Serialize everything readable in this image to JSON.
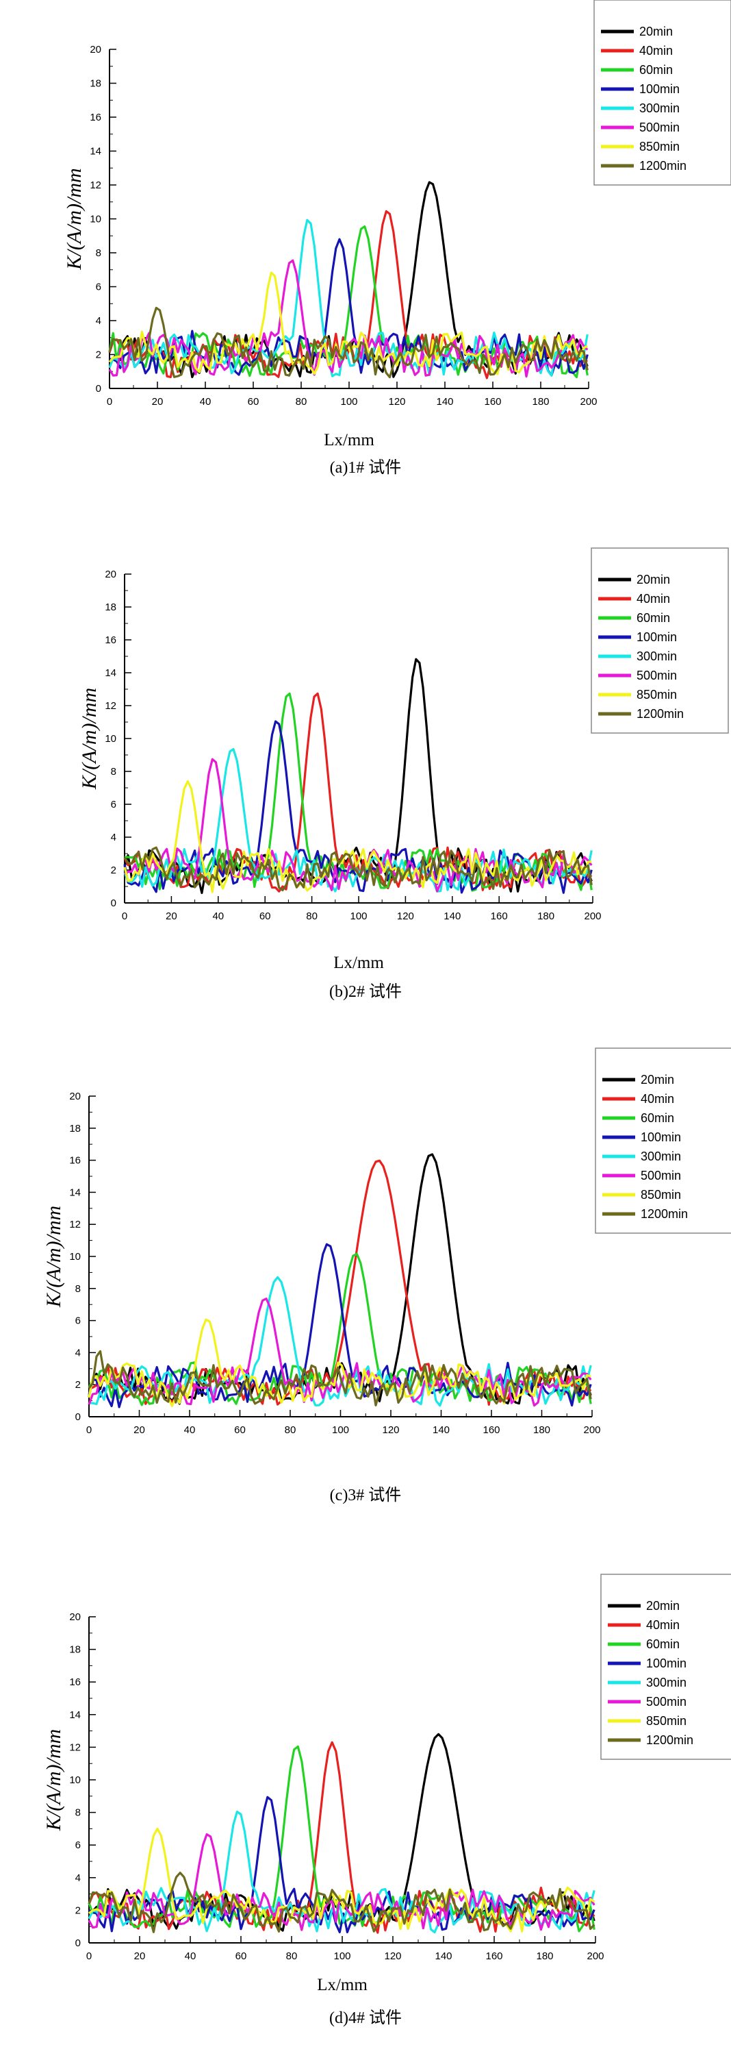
{
  "legend_labels": [
    "20min",
    "40min",
    "60min",
    "100min",
    "300min",
    "500min",
    "850min",
    "1200min"
  ],
  "series_colors": [
    "#000000",
    "#e8211e",
    "#23d323",
    "#1414b4",
    "#19e6e6",
    "#e619d7",
    "#f2f21f",
    "#6b6a1f"
  ],
  "chart_data": [
    {
      "type": "line",
      "caption": "(a)1# 试件",
      "xlabel": "Lx/mm",
      "ylabel": "K/(A/m)/mm",
      "xlim": [
        0,
        200
      ],
      "ylim": [
        0,
        20
      ],
      "xticks": [
        0,
        20,
        40,
        60,
        80,
        100,
        120,
        140,
        160,
        180,
        200
      ],
      "yticks": [
        0,
        2,
        4,
        6,
        8,
        10,
        12,
        14,
        16,
        18,
        20
      ],
      "series": [
        {
          "name": "20min",
          "peak_x": 134,
          "peak_y": 12.2,
          "width": 9
        },
        {
          "name": "40min",
          "peak_x": 116,
          "peak_y": 10.5,
          "width": 7
        },
        {
          "name": "60min",
          "peak_x": 106,
          "peak_y": 9.6,
          "width": 7
        },
        {
          "name": "100min",
          "peak_x": 96,
          "peak_y": 8.8,
          "width": 6
        },
        {
          "name": "300min",
          "peak_x": 83,
          "peak_y": 10.0,
          "width": 6
        },
        {
          "name": "500min",
          "peak_x": 76,
          "peak_y": 7.6,
          "width": 6
        },
        {
          "name": "850min",
          "peak_x": 68,
          "peak_y": 6.9,
          "width": 5
        },
        {
          "name": "1200min",
          "peak_x": 20,
          "peak_y": 4.8,
          "width": 5
        }
      ]
    },
    {
      "type": "line",
      "caption": "(b)2# 试件",
      "xlabel": "Lx/mm",
      "ylabel": "K/(A/m)/mm",
      "xlim": [
        0,
        200
      ],
      "ylim": [
        0,
        20
      ],
      "xticks": [
        0,
        20,
        40,
        60,
        80,
        100,
        120,
        140,
        160,
        180,
        200
      ],
      "yticks": [
        0,
        2,
        4,
        6,
        8,
        10,
        12,
        14,
        16,
        18,
        20
      ],
      "series": [
        {
          "name": "20min",
          "peak_x": 125,
          "peak_y": 14.9,
          "width": 7
        },
        {
          "name": "40min",
          "peak_x": 82,
          "peak_y": 12.8,
          "width": 7
        },
        {
          "name": "60min",
          "peak_x": 70,
          "peak_y": 12.8,
          "width": 7
        },
        {
          "name": "100min",
          "peak_x": 65,
          "peak_y": 11.1,
          "width": 7
        },
        {
          "name": "300min",
          "peak_x": 46,
          "peak_y": 9.4,
          "width": 7
        },
        {
          "name": "500min",
          "peak_x": 38,
          "peak_y": 8.8,
          "width": 6
        },
        {
          "name": "850min",
          "peak_x": 27,
          "peak_y": 7.4,
          "width": 6
        },
        {
          "name": "1200min",
          "peak_x": 13,
          "peak_y": 3.4,
          "width": 5
        }
      ]
    },
    {
      "type": "line",
      "caption": "(c)3# 试件",
      "xlabel": "",
      "ylabel": "K/(A/m)/mm",
      "xlim": [
        0,
        200
      ],
      "ylim": [
        0,
        20
      ],
      "xticks": [
        0,
        20,
        40,
        60,
        80,
        100,
        120,
        140,
        160,
        180,
        200
      ],
      "yticks": [
        0,
        2,
        4,
        6,
        8,
        10,
        12,
        14,
        16,
        18,
        20
      ],
      "series": [
        {
          "name": "20min",
          "peak_x": 136,
          "peak_y": 16.4,
          "width": 11
        },
        {
          "name": "40min",
          "peak_x": 115,
          "peak_y": 16.0,
          "width": 13
        },
        {
          "name": "60min",
          "peak_x": 106,
          "peak_y": 10.2,
          "width": 8
        },
        {
          "name": "100min",
          "peak_x": 95,
          "peak_y": 10.8,
          "width": 8
        },
        {
          "name": "300min",
          "peak_x": 75,
          "peak_y": 8.7,
          "width": 8
        },
        {
          "name": "500min",
          "peak_x": 70,
          "peak_y": 7.4,
          "width": 7
        },
        {
          "name": "850min",
          "peak_x": 47,
          "peak_y": 6.1,
          "width": 6
        },
        {
          "name": "1200min",
          "peak_x": 4,
          "peak_y": 4.2,
          "width": 3
        }
      ]
    },
    {
      "type": "line",
      "caption": "(d)4# 试件",
      "xlabel": "Lx/mm",
      "ylabel": "K/(A/m)/mm",
      "xlim": [
        0,
        200
      ],
      "ylim": [
        0,
        20
      ],
      "xticks": [
        0,
        20,
        40,
        60,
        80,
        100,
        120,
        140,
        160,
        180,
        200
      ],
      "yticks": [
        0,
        2,
        4,
        6,
        8,
        10,
        12,
        14,
        16,
        18,
        20
      ],
      "series": [
        {
          "name": "20min",
          "peak_x": 138,
          "peak_y": 12.8,
          "width": 11
        },
        {
          "name": "40min",
          "peak_x": 96,
          "peak_y": 12.3,
          "width": 7
        },
        {
          "name": "60min",
          "peak_x": 82,
          "peak_y": 12.1,
          "width": 7
        },
        {
          "name": "100min",
          "peak_x": 71,
          "peak_y": 9.0,
          "width": 6
        },
        {
          "name": "300min",
          "peak_x": 59,
          "peak_y": 8.1,
          "width": 6
        },
        {
          "name": "500min",
          "peak_x": 47,
          "peak_y": 6.7,
          "width": 6
        },
        {
          "name": "850min",
          "peak_x": 27,
          "peak_y": 7.0,
          "width": 6
        },
        {
          "name": "1200min",
          "peak_x": 36,
          "peak_y": 4.3,
          "width": 6
        }
      ]
    }
  ]
}
